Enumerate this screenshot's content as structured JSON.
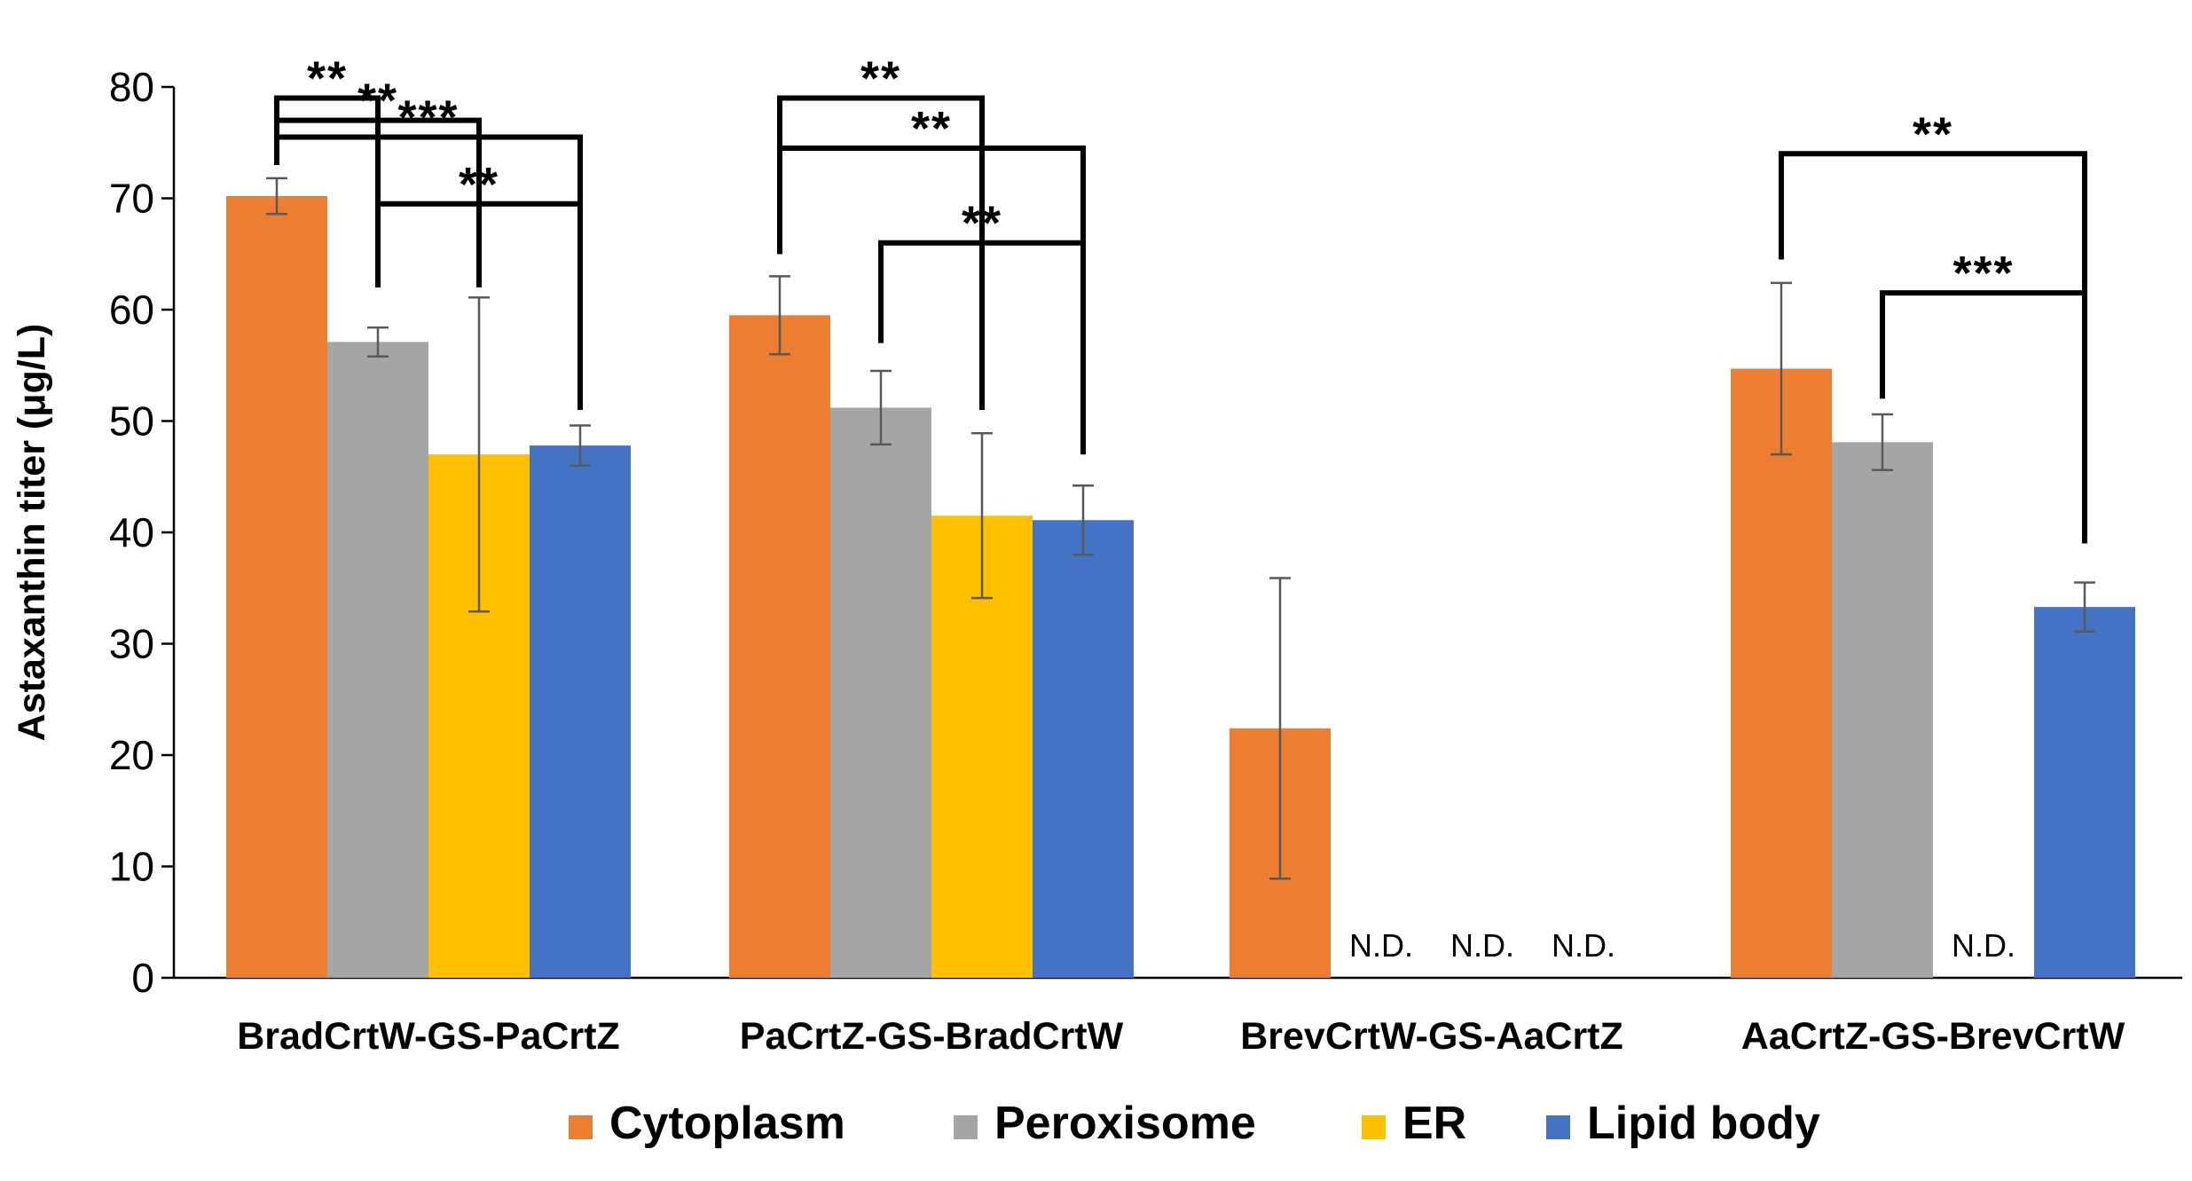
{
  "chart_data": {
    "type": "bar",
    "title": "",
    "xlabel": "",
    "ylabel": "Astaxanthin titer (μg/L)",
    "ylim": [
      0,
      80
    ],
    "yticks": [
      0,
      10,
      20,
      30,
      40,
      50,
      60,
      70,
      80
    ],
    "categories": [
      "BradCrtW-GS-PaCrtZ",
      "PaCrtZ-GS-BradCrtW",
      "BrevCrtW-GS-AaCrtZ",
      "AaCrtZ-GS-BrevCrtW"
    ],
    "legend_position": "bottom",
    "series": [
      {
        "name": "Cytoplasm",
        "color": "#ED7D31",
        "values": [
          70.2,
          59.5,
          22.4,
          54.7
        ],
        "errors": [
          1.6,
          3.5,
          13.5,
          7.7
        ],
        "labels": [
          "",
          "",
          "",
          ""
        ]
      },
      {
        "name": "Peroxisome",
        "color": "#A5A5A5",
        "values": [
          57.1,
          51.2,
          null,
          48.1
        ],
        "errors": [
          1.3,
          3.3,
          null,
          2.5
        ],
        "labels": [
          "",
          "",
          "N.D.",
          ""
        ]
      },
      {
        "name": "ER",
        "color": "#FFC000",
        "values": [
          47.0,
          41.5,
          null,
          null
        ],
        "errors": [
          14.1,
          7.4,
          null,
          null
        ],
        "labels": [
          "",
          "",
          "N.D.",
          "N.D."
        ]
      },
      {
        "name": "Lipid body",
        "color": "#4472C4",
        "values": [
          47.8,
          41.1,
          null,
          33.3
        ],
        "errors": [
          1.8,
          3.1,
          null,
          2.2
        ],
        "labels": [
          "",
          "",
          "N.D.",
          ""
        ]
      }
    ],
    "significance": [
      {
        "group": 0,
        "from": 0,
        "to": 1,
        "label": "**",
        "level": 79,
        "left_base": 73,
        "right_base": 62
      },
      {
        "group": 0,
        "from": 0,
        "to": 2,
        "label": "**",
        "level": 77,
        "left_base": 73,
        "right_base": 62
      },
      {
        "group": 0,
        "from": 0,
        "to": 3,
        "label": "***",
        "level": 75.5,
        "left_base": 73,
        "right_base": 51
      },
      {
        "group": 0,
        "from": 1,
        "to": 3,
        "label": "**",
        "level": 69.5,
        "left_base": 62,
        "right_base": 51
      },
      {
        "group": 1,
        "from": 0,
        "to": 2,
        "label": "**",
        "level": 79,
        "left_base": 65,
        "right_base": 51
      },
      {
        "group": 1,
        "from": 0,
        "to": 3,
        "label": "**",
        "level": 74.5,
        "left_base": 65,
        "right_base": 47
      },
      {
        "group": 1,
        "from": 1,
        "to": 3,
        "label": "**",
        "level": 66,
        "left_base": 57,
        "right_base": 47
      },
      {
        "group": 3,
        "from": 0,
        "to": 3,
        "label": "**",
        "level": 74,
        "left_base": 64.5,
        "right_base": 39
      },
      {
        "group": 3,
        "from": 1,
        "to": 3,
        "label": "***",
        "level": 61.5,
        "left_base": 52,
        "right_base": 39
      }
    ]
  }
}
